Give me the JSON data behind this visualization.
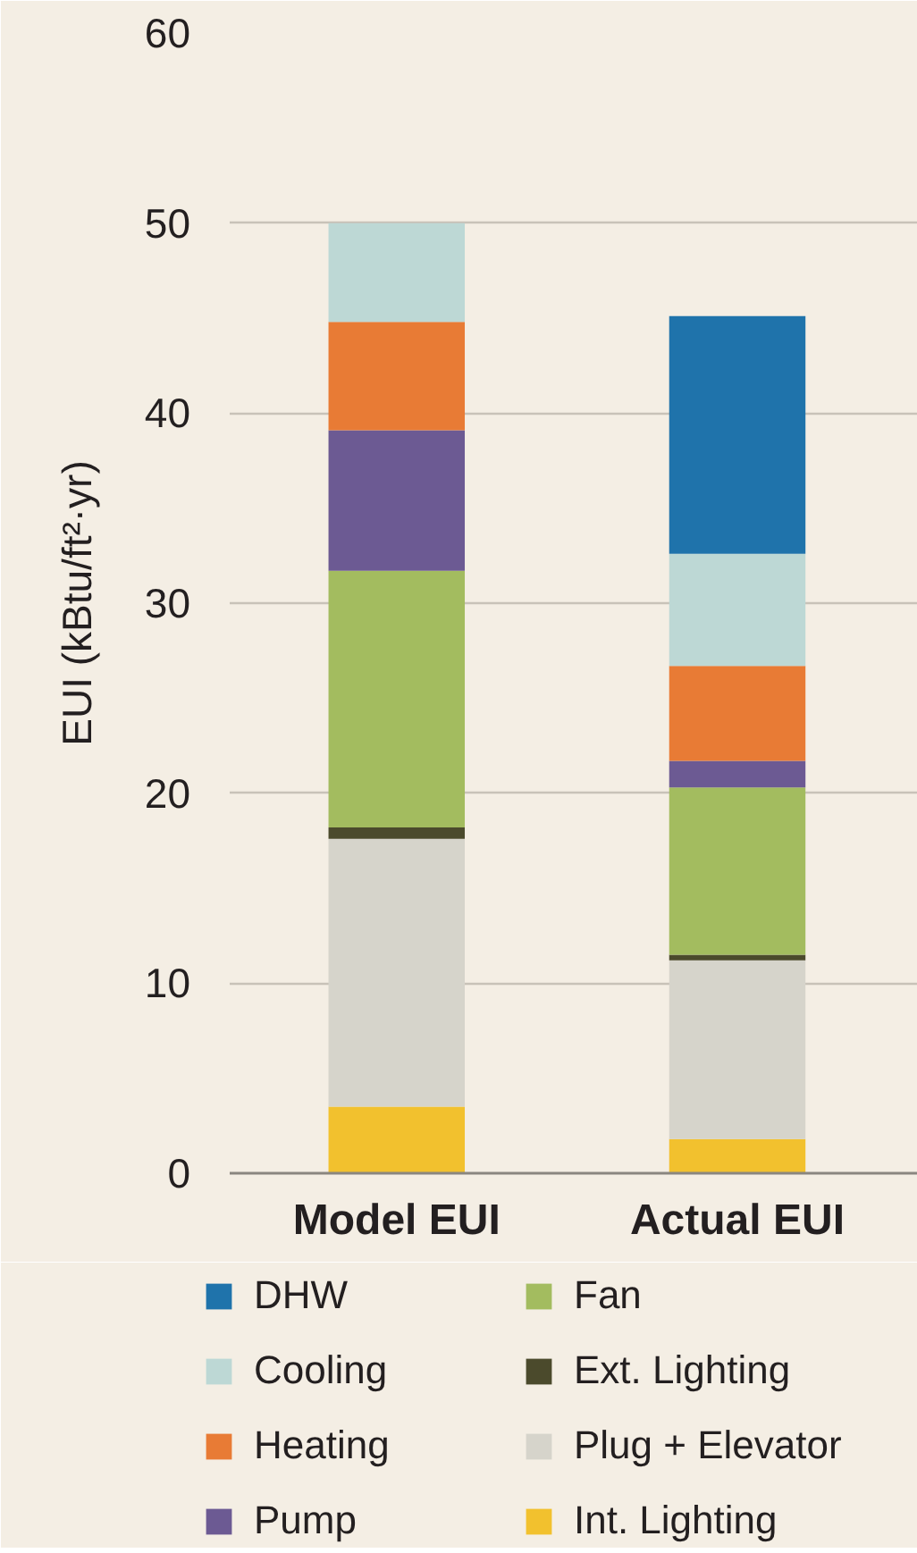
{
  "chart_data": {
    "type": "bar",
    "stacked": true,
    "categories": [
      "Model EUI",
      "Actual EUI"
    ],
    "ylabel": "EUI (kBtu/ft²·yr)",
    "ylim": [
      0,
      60
    ],
    "yticks": [
      0,
      10,
      20,
      30,
      40,
      50,
      60
    ],
    "grid": "y",
    "legend": "bottom",
    "series": [
      {
        "name": "Int. Lighting",
        "color": "#f2c12e",
        "values": [
          3.5,
          1.8
        ]
      },
      {
        "name": "Plug + Elevator",
        "color": "#d6d4cb",
        "values": [
          14.1,
          9.4
        ]
      },
      {
        "name": "Ext. Lighting",
        "color": "#4b4a2c",
        "values": [
          0.6,
          0.3
        ]
      },
      {
        "name": "Fan",
        "color": "#a3bc5f",
        "values": [
          13.5,
          8.8
        ]
      },
      {
        "name": "Pump",
        "color": "#6c5a93",
        "values": [
          7.4,
          1.4
        ]
      },
      {
        "name": "Heating",
        "color": "#e87b35",
        "values": [
          5.7,
          5.0
        ]
      },
      {
        "name": "Cooling",
        "color": "#bdd8d5",
        "values": [
          5.2,
          5.9
        ]
      },
      {
        "name": "DHW",
        "color": "#1f73ab",
        "values": [
          0,
          12.5
        ]
      }
    ]
  }
}
